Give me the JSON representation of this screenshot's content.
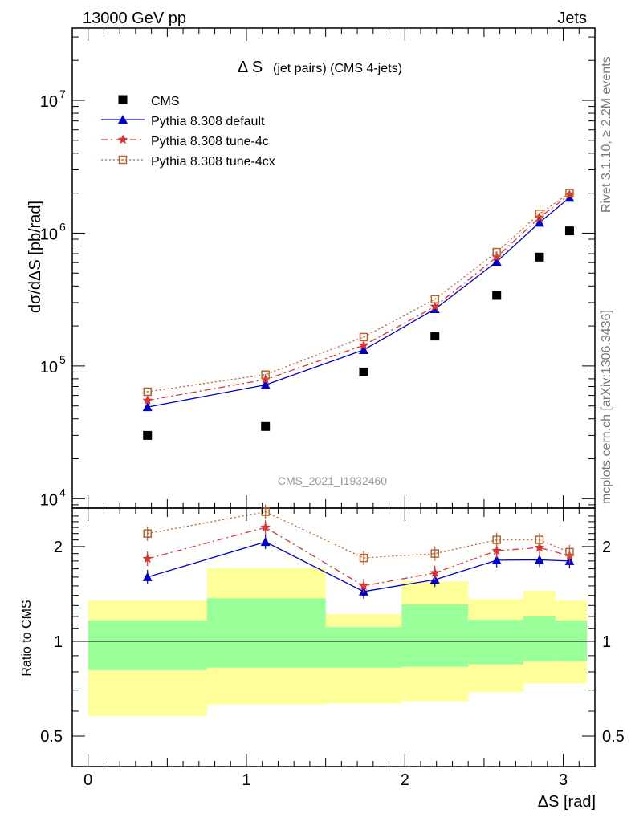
{
  "header": {
    "left": "13000 GeV pp",
    "right": "Jets"
  },
  "side_labels": {
    "rivet": "Rivet 3.1.10, ≥ 2.2M events",
    "mcplots": "mcplots.cern.ch [arXiv:1306.3436]"
  },
  "plot_title": {
    "main": "Δ S",
    "sub": "(jet pairs) (CMS 4-jets)"
  },
  "watermark": "CMS_2021_I1932460",
  "colors": {
    "cms": "#000000",
    "default": "#0000cc",
    "tune4c": "#dd3333",
    "tune4cx": "#c0602a",
    "band_outer": "#ffff99",
    "band_inner": "#99ff99"
  },
  "chart_data": [
    {
      "type": "scatter",
      "panel": "main",
      "ylabel": "dσ/dΔS [pb/rad]",
      "yscale": "log",
      "ylim": [
        8500,
        35000000
      ],
      "xlim": [
        -0.1,
        3.2
      ],
      "y_ticks": [
        {
          "value": 10000,
          "base": "10",
          "exp": "4"
        },
        {
          "value": 100000,
          "base": "10",
          "exp": "5"
        },
        {
          "value": 1000000,
          "base": "10",
          "exp": "6"
        },
        {
          "value": 10000000,
          "base": "10",
          "exp": "7"
        }
      ],
      "x": [
        0.375,
        1.12,
        1.74,
        2.19,
        2.58,
        2.85,
        3.04
      ],
      "series": [
        {
          "name": "CMS",
          "marker": "square",
          "line": "none",
          "values": [
            30000,
            35000,
            90000,
            168000,
            340000,
            660000,
            1040000
          ]
        },
        {
          "name": "Pythia 8.308 default",
          "marker": "triangle",
          "line": "solid",
          "values": [
            49000,
            72000,
            132000,
            268000,
            610000,
            1200000,
            1850000
          ]
        },
        {
          "name": "Pythia 8.308 tune-4c",
          "marker": "star",
          "line": "dashdot",
          "values": [
            55000,
            79000,
            143000,
            280000,
            660000,
            1310000,
            1950000
          ]
        },
        {
          "name": "Pythia 8.308 tune-4cx",
          "marker": "open-square",
          "line": "dotted",
          "values": [
            64000,
            86000,
            165000,
            318000,
            720000,
            1400000,
            2000000
          ]
        }
      ]
    },
    {
      "type": "line",
      "panel": "ratio",
      "ylabel": "Ratio to CMS",
      "yscale": "log",
      "ylim": [
        0.4,
        2.65
      ],
      "xlim": [
        -0.1,
        3.2
      ],
      "xlabel": "ΔS [rad]",
      "x_ticks": [
        "0",
        "1",
        "2",
        "3"
      ],
      "y_ticks": [
        {
          "value": 0.5,
          "label": "0.5"
        },
        {
          "value": 1,
          "label": "1"
        },
        {
          "value": 2,
          "label": "2"
        }
      ],
      "bins": [
        {
          "x0": 0.0,
          "x1": 0.75,
          "inner": [
            0.81,
            1.165
          ],
          "outer": [
            0.58,
            1.35
          ]
        },
        {
          "x0": 0.75,
          "x1": 1.5,
          "inner": [
            0.825,
            1.37
          ],
          "outer": [
            0.63,
            1.71
          ]
        },
        {
          "x0": 1.5,
          "x1": 1.98,
          "inner": [
            0.825,
            1.11
          ],
          "outer": [
            0.635,
            1.22
          ]
        },
        {
          "x0": 1.98,
          "x1": 2.4,
          "inner": [
            0.83,
            1.31
          ],
          "outer": [
            0.645,
            1.55
          ]
        },
        {
          "x0": 2.4,
          "x1": 2.75,
          "inner": [
            0.845,
            1.17
          ],
          "outer": [
            0.69,
            1.36
          ]
        },
        {
          "x0": 2.75,
          "x1": 2.95,
          "inner": [
            0.865,
            1.2
          ],
          "outer": [
            0.735,
            1.45
          ]
        },
        {
          "x0": 2.95,
          "x1": 3.15,
          "inner": [
            0.865,
            1.165
          ],
          "outer": [
            0.735,
            1.35
          ]
        }
      ],
      "x": [
        0.375,
        1.12,
        1.74,
        2.19,
        2.58,
        2.85,
        3.04
      ],
      "series": [
        {
          "name": "Pythia 8.308 default",
          "values": [
            1.6,
            2.07,
            1.44,
            1.57,
            1.81,
            1.815,
            1.8
          ]
        },
        {
          "name": "Pythia 8.308 tune-4c",
          "values": [
            1.83,
            2.3,
            1.5,
            1.65,
            1.94,
            1.985,
            1.87
          ]
        },
        {
          "name": "Pythia 8.308 tune-4cx",
          "values": [
            2.2,
            2.58,
            1.84,
            1.9,
            2.1,
            2.1,
            1.92
          ]
        }
      ]
    }
  ]
}
